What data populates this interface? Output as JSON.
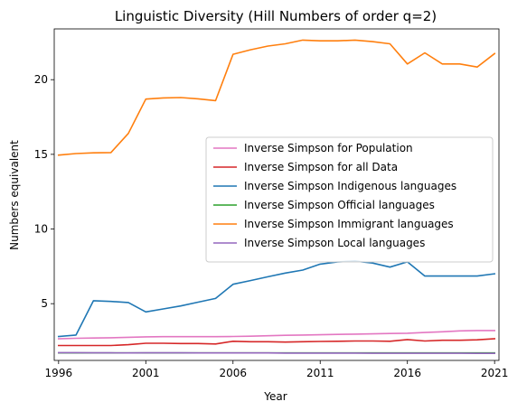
{
  "chart_data": {
    "type": "line",
    "title": "Linguistic Diversity (Hill Numbers of order q=2)",
    "xlabel": "Year",
    "ylabel": "Numbers equivalent",
    "xlim": [
      1995.75,
      2021.25
    ],
    "ylim": [
      1.2,
      23.4
    ],
    "xticks": [
      1996,
      2001,
      2006,
      2011,
      2016,
      2021
    ],
    "yticks": [
      5,
      10,
      15,
      20
    ],
    "grid": false,
    "legend_position": "center-right",
    "x": [
      1996,
      1997,
      1998,
      1999,
      2000,
      2001,
      2002,
      2003,
      2004,
      2005,
      2006,
      2007,
      2008,
      2009,
      2010,
      2011,
      2012,
      2013,
      2014,
      2015,
      2016,
      2017,
      2018,
      2019,
      2020,
      2021
    ],
    "series": [
      {
        "name": "Inverse Simpson for Population",
        "color": "#e377c2",
        "values": [
          2.65,
          2.68,
          2.7,
          2.72,
          2.75,
          2.78,
          2.79,
          2.79,
          2.79,
          2.79,
          2.8,
          2.82,
          2.85,
          2.88,
          2.9,
          2.92,
          2.94,
          2.96,
          2.98,
          3.0,
          3.02,
          3.07,
          3.12,
          3.18,
          3.2,
          3.2
        ]
      },
      {
        "name": "Inverse Simpson for all Data",
        "color": "#d62728",
        "values": [
          2.2,
          2.2,
          2.2,
          2.2,
          2.25,
          2.35,
          2.35,
          2.33,
          2.33,
          2.3,
          2.48,
          2.45,
          2.45,
          2.43,
          2.45,
          2.47,
          2.48,
          2.5,
          2.5,
          2.48,
          2.6,
          2.5,
          2.55,
          2.55,
          2.58,
          2.65
        ]
      },
      {
        "name": "Inverse Simpson Indigenous languages",
        "color": "#1f77b4",
        "values": [
          2.8,
          2.9,
          5.2,
          5.15,
          5.08,
          4.45,
          4.65,
          4.85,
          5.1,
          5.35,
          6.3,
          6.55,
          6.8,
          7.05,
          7.25,
          7.65,
          7.8,
          7.85,
          7.72,
          7.45,
          7.8,
          6.85,
          6.85,
          6.85,
          6.85,
          7.0
        ]
      },
      {
        "name": "Inverse Simpson Official languages",
        "color": "#2ca02c",
        "values": [
          1.7,
          1.7,
          1.7,
          1.7,
          1.7,
          1.7,
          1.7,
          1.7,
          1.7,
          1.7,
          1.7,
          1.7,
          1.7,
          1.7,
          1.7,
          1.7,
          1.7,
          1.7,
          1.7,
          1.7,
          1.7,
          1.7,
          1.7,
          1.7,
          1.7,
          1.7
        ]
      },
      {
        "name": "Inverse Simpson Immigrant languages",
        "color": "#ff7f0e",
        "values": [
          14.95,
          15.05,
          15.1,
          15.12,
          16.4,
          18.7,
          18.78,
          18.8,
          18.72,
          18.6,
          21.7,
          22.0,
          22.25,
          22.4,
          22.65,
          22.6,
          22.6,
          22.65,
          22.55,
          22.4,
          21.05,
          21.8,
          21.05,
          21.05,
          20.85,
          21.75
        ]
      },
      {
        "name": "Inverse Simpson Local languages",
        "color": "#9467bd",
        "values": [
          1.72,
          1.72,
          1.71,
          1.71,
          1.7,
          1.71,
          1.71,
          1.71,
          1.7,
          1.7,
          1.7,
          1.7,
          1.7,
          1.69,
          1.69,
          1.69,
          1.69,
          1.69,
          1.68,
          1.68,
          1.68,
          1.68,
          1.68,
          1.68,
          1.67,
          1.67
        ]
      }
    ]
  }
}
